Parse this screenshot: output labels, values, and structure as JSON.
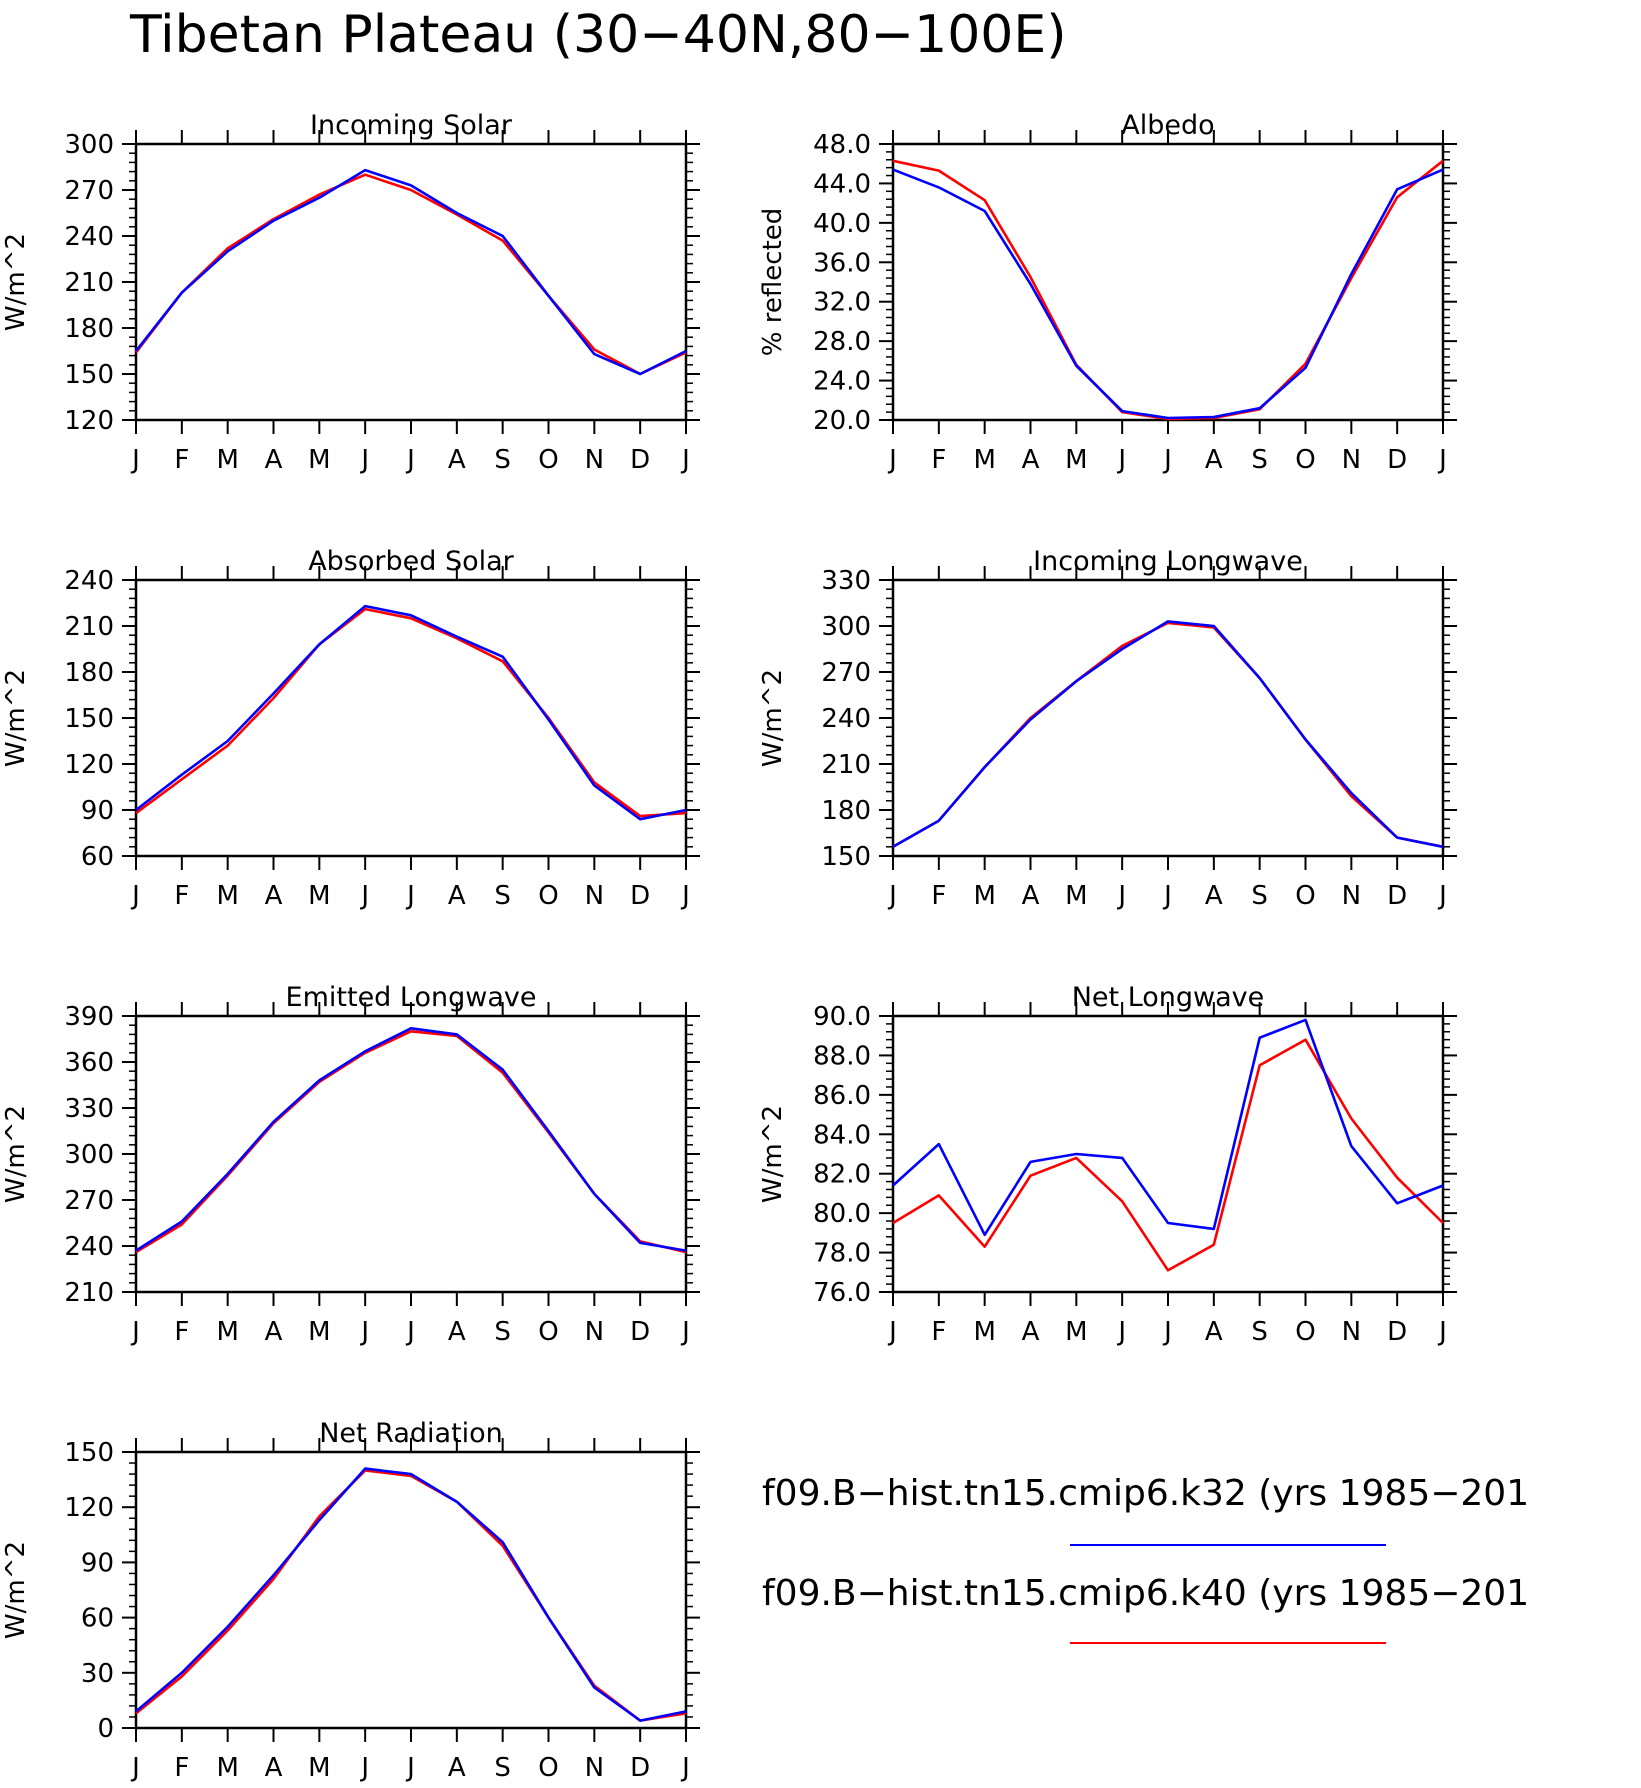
{
  "title": "Tibetan Plateau (30−40N,80−100E)",
  "colors": {
    "k32": "#0000ff",
    "k40": "#ff0000"
  },
  "legend": {
    "entries": [
      {
        "label": "f09.B−hist.tn15.cmip6.k32 (yrs 1985−201",
        "color": "#0000ff"
      },
      {
        "label": "f09.B−hist.tn15.cmip6.k40 (yrs 1985−201",
        "color": "#ff0000"
      }
    ]
  },
  "chart_data": [
    {
      "type": "line",
      "title": "Incoming Solar",
      "ylabel": "W/m^2",
      "categories": [
        "J",
        "F",
        "M",
        "A",
        "M",
        "J",
        "J",
        "A",
        "S",
        "O",
        "N",
        "D",
        "J"
      ],
      "ylim": [
        120,
        300
      ],
      "yticks": [
        "120",
        "150",
        "180",
        "210",
        "240",
        "270",
        "300"
      ],
      "series": [
        {
          "color": "#ff0000",
          "values": [
            164,
            203,
            232,
            251,
            267,
            280,
            270,
            254,
            237,
            201,
            166,
            150,
            164
          ]
        },
        {
          "color": "#0000ff",
          "values": [
            165,
            203,
            230,
            250,
            265,
            283,
            273,
            255,
            240,
            201,
            163,
            150,
            165
          ]
        }
      ]
    },
    {
      "type": "line",
      "title": "Albedo",
      "ylabel": "% reflected",
      "categories": [
        "J",
        "F",
        "M",
        "A",
        "M",
        "J",
        "J",
        "A",
        "S",
        "O",
        "N",
        "D",
        "J"
      ],
      "ylim": [
        20,
        48
      ],
      "yticks": [
        "20.0",
        "24.0",
        "28.0",
        "32.0",
        "36.0",
        "40.0",
        "44.0",
        "48.0"
      ],
      "series": [
        {
          "color": "#ff0000",
          "values": [
            46.3,
            45.3,
            42.3,
            34.5,
            25.6,
            20.8,
            20.1,
            20.2,
            21.1,
            25.7,
            34.4,
            42.6,
            46.3
          ]
        },
        {
          "color": "#0000ff",
          "values": [
            45.4,
            43.6,
            41.2,
            33.8,
            25.5,
            20.9,
            20.2,
            20.3,
            21.2,
            25.3,
            34.8,
            43.4,
            45.4
          ]
        }
      ]
    },
    {
      "type": "line",
      "title": "Absorbed Solar",
      "ylabel": "W/m^2",
      "categories": [
        "J",
        "F",
        "M",
        "A",
        "M",
        "J",
        "J",
        "A",
        "S",
        "O",
        "N",
        "D",
        "J"
      ],
      "ylim": [
        60,
        240
      ],
      "yticks": [
        "60",
        "90",
        "120",
        "150",
        "180",
        "210",
        "240"
      ],
      "series": [
        {
          "color": "#ff0000",
          "values": [
            88,
            110,
            132,
            163,
            198,
            221,
            215,
            202,
            187,
            150,
            108,
            86,
            88
          ]
        },
        {
          "color": "#0000ff",
          "values": [
            90,
            113,
            135,
            166,
            198,
            223,
            217,
            203,
            190,
            149,
            106,
            84,
            90
          ]
        }
      ]
    },
    {
      "type": "line",
      "title": "Incoming Longwave",
      "ylabel": "W/m^2",
      "categories": [
        "J",
        "F",
        "M",
        "A",
        "M",
        "J",
        "J",
        "A",
        "S",
        "O",
        "N",
        "D",
        "J"
      ],
      "ylim": [
        150,
        330
      ],
      "yticks": [
        "150",
        "180",
        "210",
        "240",
        "270",
        "300",
        "330"
      ],
      "series": [
        {
          "color": "#ff0000",
          "values": [
            156,
            173,
            208,
            240,
            264,
            287,
            302,
            299,
            266,
            226,
            189,
            162,
            156
          ]
        },
        {
          "color": "#0000ff",
          "values": [
            156,
            173,
            208,
            239,
            264,
            285,
            303,
            300,
            266,
            226,
            191,
            162,
            156
          ]
        }
      ]
    },
    {
      "type": "line",
      "title": "Emitted Longwave",
      "ylabel": "W/m^2",
      "categories": [
        "J",
        "F",
        "M",
        "A",
        "M",
        "J",
        "J",
        "A",
        "S",
        "O",
        "N",
        "D",
        "J"
      ],
      "ylim": [
        210,
        390
      ],
      "yticks": [
        "210",
        "240",
        "270",
        "300",
        "330",
        "360",
        "390"
      ],
      "series": [
        {
          "color": "#ff0000",
          "values": [
            236,
            254,
            286,
            320,
            347,
            366,
            380,
            377,
            353,
            314,
            274,
            243,
            236
          ]
        },
        {
          "color": "#0000ff",
          "values": [
            237,
            256,
            287,
            321,
            348,
            367,
            382,
            378,
            355,
            315,
            274,
            242,
            237
          ]
        }
      ]
    },
    {
      "type": "line",
      "title": "Net Longwave",
      "ylabel": "W/m^2",
      "categories": [
        "J",
        "F",
        "M",
        "A",
        "M",
        "J",
        "J",
        "A",
        "S",
        "O",
        "N",
        "D",
        "J"
      ],
      "ylim": [
        76,
        90
      ],
      "yticks": [
        "76.0",
        "78.0",
        "80.0",
        "82.0",
        "84.0",
        "86.0",
        "88.0",
        "90.0"
      ],
      "series": [
        {
          "color": "#ff0000",
          "values": [
            79.5,
            80.9,
            78.3,
            81.9,
            82.8,
            80.6,
            77.1,
            78.4,
            87.5,
            88.8,
            84.8,
            81.8,
            79.5
          ]
        },
        {
          "color": "#0000ff",
          "values": [
            81.4,
            83.5,
            78.9,
            82.6,
            83.0,
            82.8,
            79.5,
            79.2,
            88.9,
            89.8,
            83.4,
            80.5,
            81.4
          ]
        }
      ]
    },
    {
      "type": "line",
      "title": "Net Radiation",
      "ylabel": "W/m^2",
      "categories": [
        "J",
        "F",
        "M",
        "A",
        "M",
        "J",
        "J",
        "A",
        "S",
        "O",
        "N",
        "D",
        "J"
      ],
      "ylim": [
        0,
        150
      ],
      "yticks": [
        "0",
        "30",
        "60",
        "90",
        "120",
        "150"
      ],
      "series": [
        {
          "color": "#ff0000",
          "values": [
            8,
            28,
            53,
            81,
            115,
            140,
            137,
            123,
            99,
            60,
            23,
            4,
            8
          ]
        },
        {
          "color": "#0000ff",
          "values": [
            9,
            30,
            55,
            83,
            113,
            141,
            138,
            123,
            101,
            60,
            22,
            4,
            9
          ]
        }
      ]
    }
  ]
}
